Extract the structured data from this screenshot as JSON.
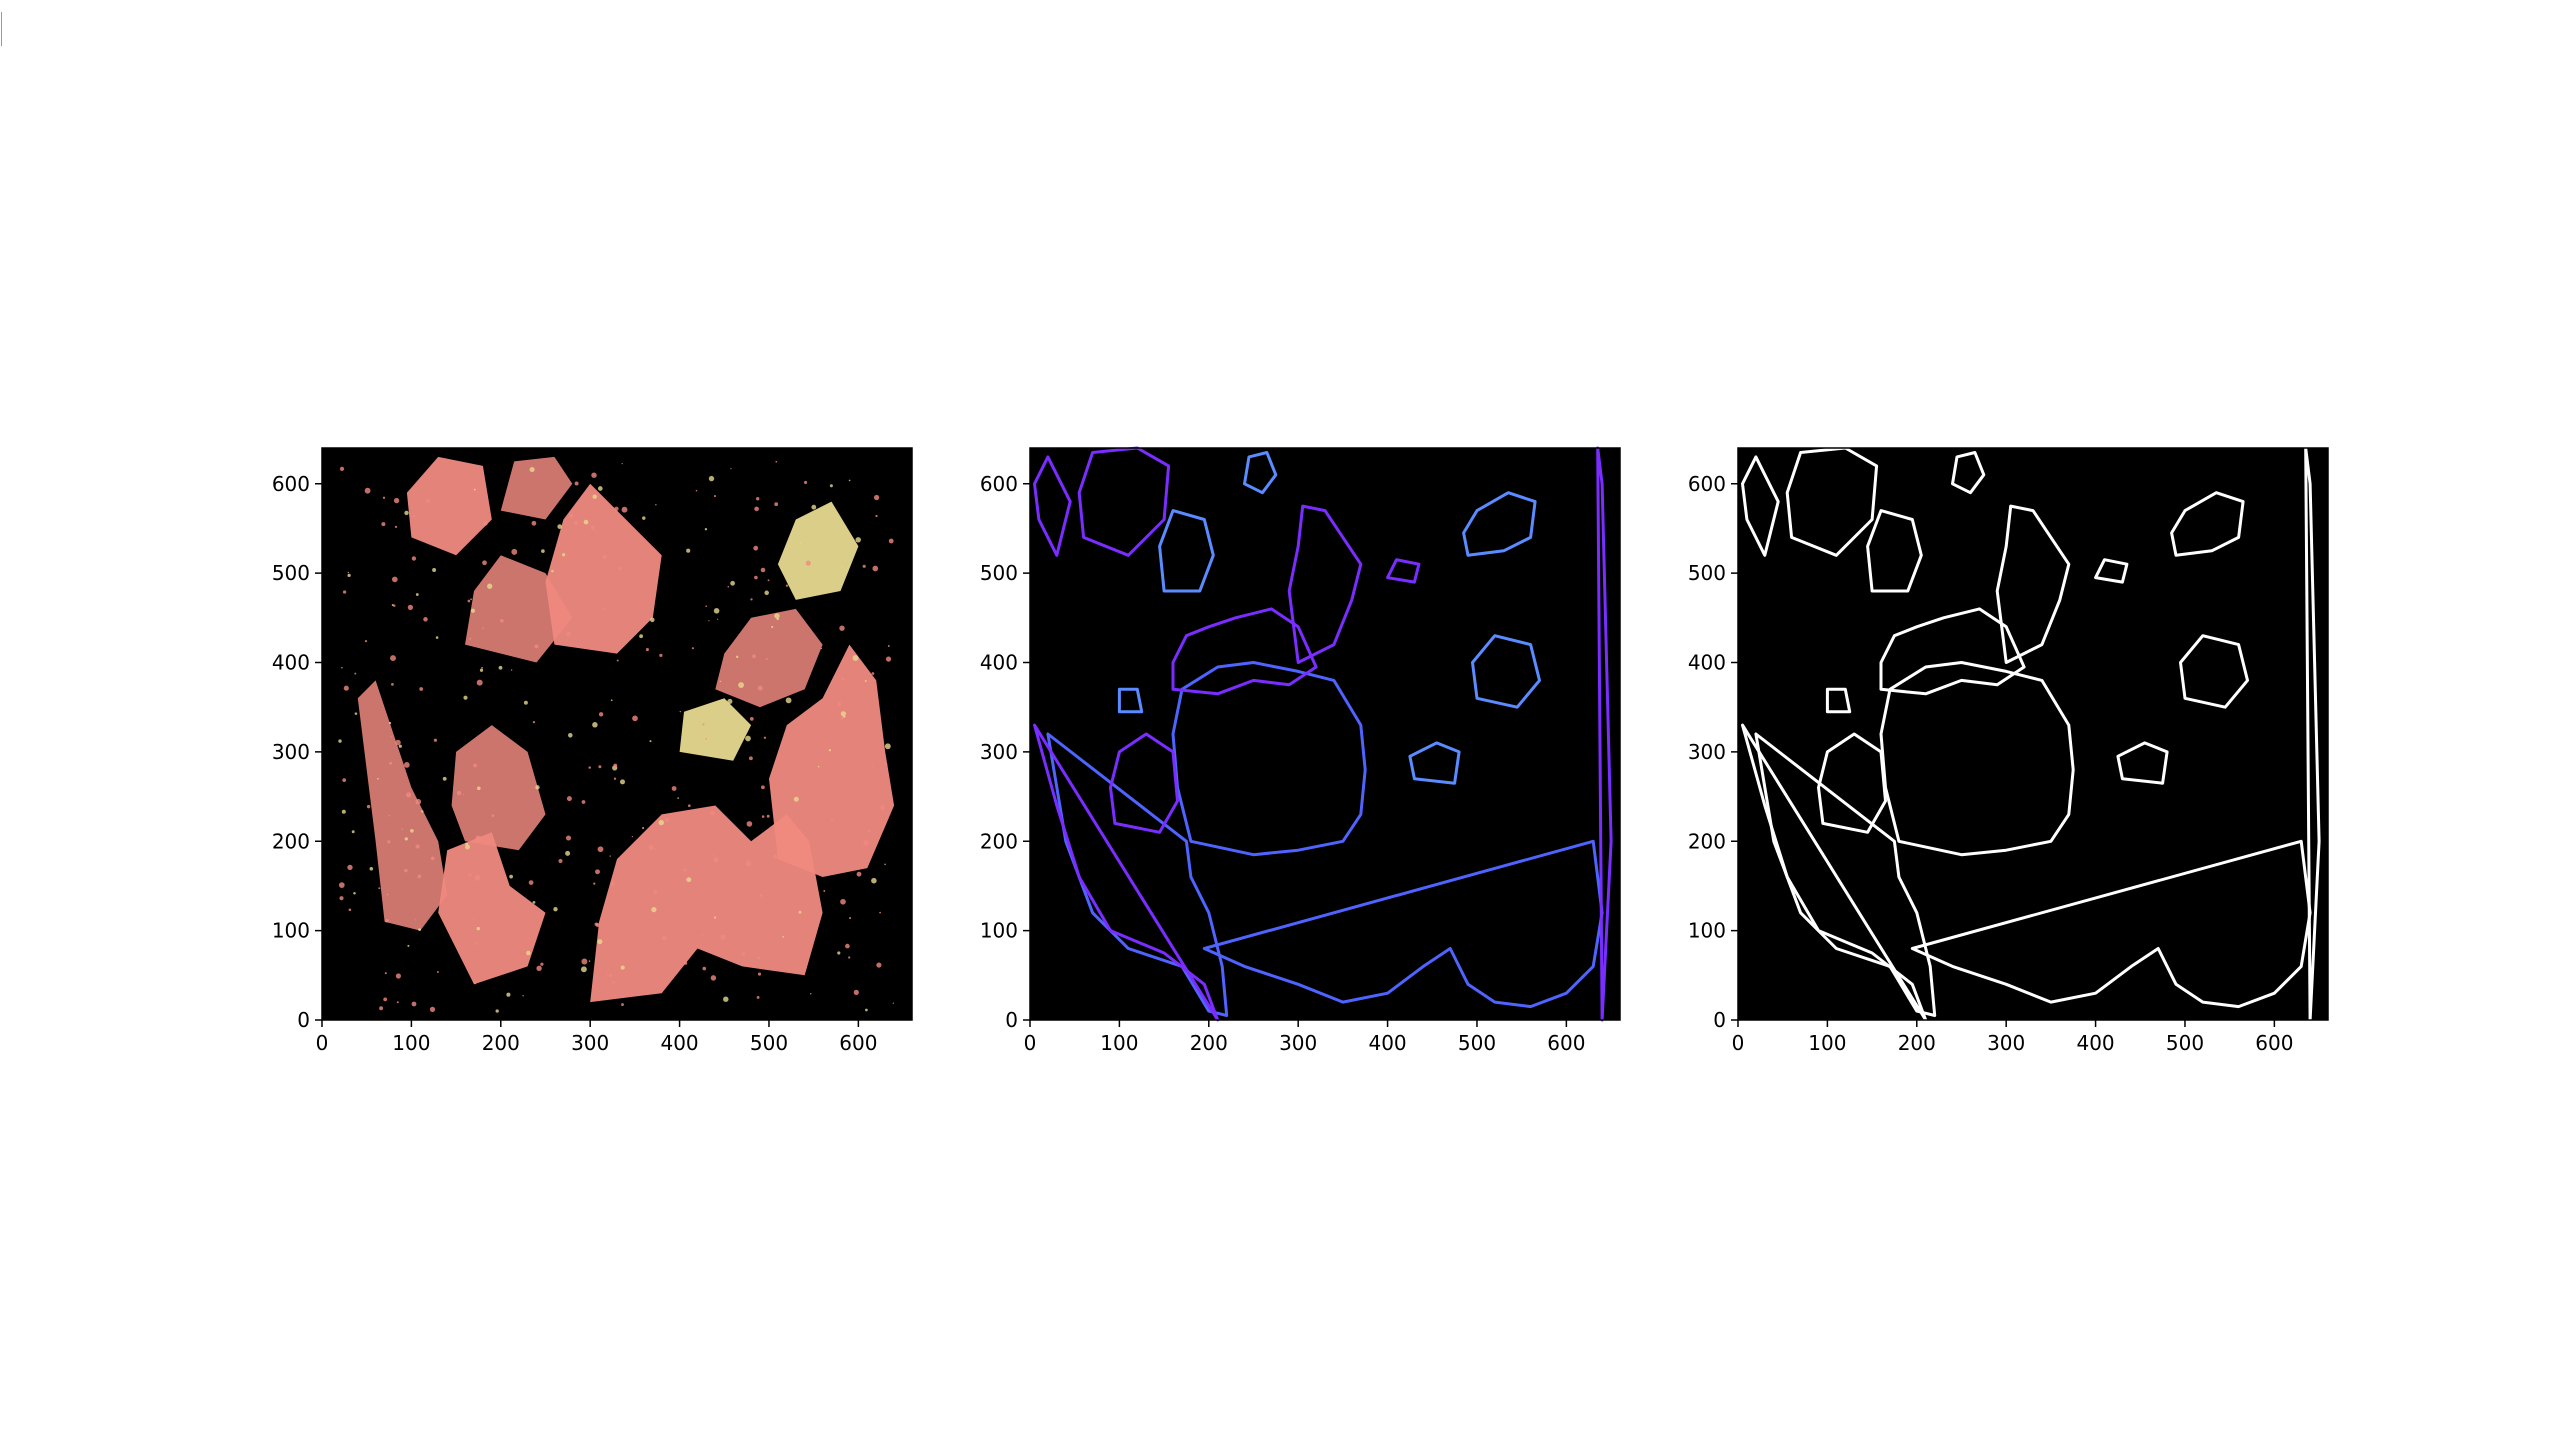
{
  "chart_data": [
    {
      "type": "image",
      "x_ticks": [
        0,
        100,
        200,
        300,
        400,
        500,
        600
      ],
      "y_ticks": [
        0,
        100,
        200,
        300,
        400,
        500,
        600
      ],
      "xlim": [
        0,
        660
      ],
      "ylim": [
        640,
        0
      ],
      "background": "#000000",
      "palette": {
        "fill": "#f08a80",
        "speckle": "#e7d98f"
      }
    },
    {
      "type": "image",
      "x_ticks": [
        0,
        100,
        200,
        300,
        400,
        500,
        600
      ],
      "y_ticks": [
        0,
        100,
        200,
        300,
        400,
        500,
        600
      ],
      "xlim": [
        0,
        660
      ],
      "ylim": [
        640,
        0
      ],
      "background": "#000000",
      "palette": {
        "contour_a": "#4f63ff",
        "contour_b": "#7a2dff",
        "contour_c": "#5a8cff"
      }
    },
    {
      "type": "image",
      "x_ticks": [
        0,
        100,
        200,
        300,
        400,
        500,
        600
      ],
      "y_ticks": [
        0,
        100,
        200,
        300,
        400,
        500,
        600
      ],
      "xlim": [
        0,
        660
      ],
      "ylim": [
        640,
        0
      ],
      "background": "#000000",
      "palette": {
        "contour": "#ffffff"
      }
    }
  ]
}
